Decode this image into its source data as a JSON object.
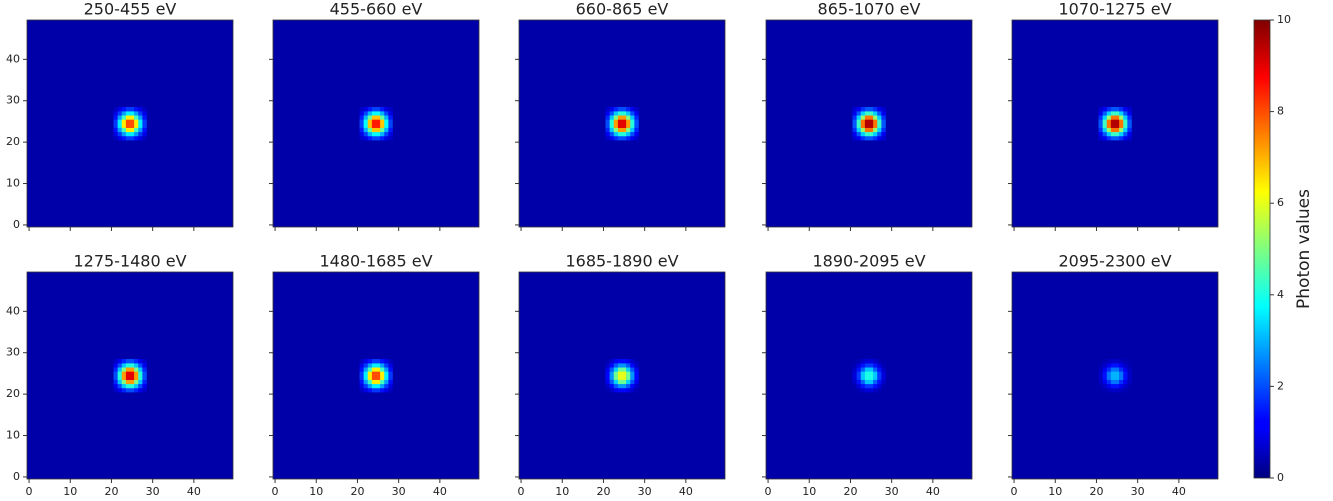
{
  "chart_data": {
    "type": "heatmap",
    "colormap": "jet",
    "x": [
      21,
      22,
      23,
      24,
      25,
      26,
      27,
      28
    ],
    "y": [
      21,
      22,
      23,
      24,
      25,
      26,
      27,
      28
    ],
    "xlim": [
      -0.5,
      49.5
    ],
    "ylim": [
      -0.5,
      49.5
    ],
    "xticks": [
      0,
      10,
      20,
      30,
      40
    ],
    "yticks": [
      0,
      10,
      20,
      30,
      40
    ],
    "colorbar": {
      "label": "Photon values",
      "lim": [
        0,
        10
      ],
      "ticks": [
        0,
        2,
        4,
        6,
        8,
        10
      ]
    },
    "panels": [
      {
        "title": "250-455 eV",
        "background": 0.4,
        "values": [
          [
            0.6,
            1.0,
            1.4,
            1.8,
            1.8,
            1.4,
            1.0,
            0.6
          ],
          [
            1.0,
            1.8,
            2.8,
            3.6,
            3.6,
            2.8,
            1.8,
            1.0
          ],
          [
            1.4,
            2.8,
            4.4,
            6.4,
            6.4,
            4.4,
            2.8,
            1.4
          ],
          [
            1.8,
            3.6,
            6.4,
            8,
            8,
            6.4,
            3.6,
            1.8
          ],
          [
            1.8,
            3.6,
            6.4,
            8,
            8,
            6.4,
            3.6,
            1.8
          ],
          [
            1.4,
            2.8,
            4.4,
            6.4,
            6.4,
            4.4,
            2.8,
            1.4
          ],
          [
            1.0,
            1.8,
            2.8,
            3.6,
            3.6,
            2.8,
            1.8,
            1.0
          ],
          [
            0.6,
            1.0,
            1.4,
            1.8,
            1.8,
            1.4,
            1.0,
            0.6
          ]
        ]
      },
      {
        "title": "455-660 eV",
        "background": 0.4,
        "values": [
          [
            0.7,
            1.0,
            1.5,
            1.9,
            1.9,
            1.5,
            1.0,
            0.7
          ],
          [
            1.0,
            1.9,
            3.0,
            3.8,
            3.8,
            3.0,
            1.9,
            1.0
          ],
          [
            1.5,
            3.0,
            4.7,
            6.8,
            6.8,
            4.7,
            3.0,
            1.5
          ],
          [
            1.9,
            3.8,
            6.8,
            8.5,
            8.5,
            6.8,
            3.8,
            1.9
          ],
          [
            1.9,
            3.8,
            6.8,
            8.5,
            8.5,
            6.8,
            3.8,
            1.9
          ],
          [
            1.5,
            3.0,
            4.7,
            6.8,
            6.8,
            4.7,
            3.0,
            1.5
          ],
          [
            1.0,
            1.9,
            3.0,
            3.8,
            3.8,
            3.0,
            1.9,
            1.0
          ],
          [
            0.7,
            1.0,
            1.5,
            1.9,
            1.9,
            1.5,
            1.0,
            0.7
          ]
        ]
      },
      {
        "title": "660-865 eV",
        "background": 0.4,
        "values": [
          [
            0.7,
            1.1,
            1.6,
            2.0,
            2.0,
            1.6,
            1.1,
            0.7
          ],
          [
            1.1,
            2.0,
            3.2,
            4.1,
            4.1,
            3.2,
            2.0,
            1.1
          ],
          [
            1.6,
            3.2,
            5.0,
            7.2,
            7.2,
            5.0,
            3.2,
            1.6
          ],
          [
            2.0,
            4.1,
            7.2,
            9,
            9,
            7.2,
            4.1,
            2.0
          ],
          [
            2.0,
            4.1,
            7.2,
            9,
            9,
            7.2,
            4.1,
            2.0
          ],
          [
            1.6,
            3.2,
            5.0,
            7.2,
            7.2,
            5.0,
            3.2,
            1.6
          ],
          [
            1.1,
            2.0,
            3.2,
            4.1,
            4.1,
            3.2,
            2.0,
            1.1
          ],
          [
            0.7,
            1.1,
            1.6,
            2.0,
            2.0,
            1.6,
            1.1,
            0.7
          ]
        ]
      },
      {
        "title": "865-1070 eV",
        "background": 0.4,
        "values": [
          [
            0.8,
            1.1,
            1.7,
            2.1,
            2.1,
            1.7,
            1.1,
            0.8
          ],
          [
            1.1,
            2.1,
            3.3,
            4.3,
            4.3,
            3.3,
            2.1,
            1.1
          ],
          [
            1.7,
            3.3,
            5.2,
            7.6,
            7.6,
            5.2,
            3.3,
            1.7
          ],
          [
            2.1,
            4.3,
            7.6,
            9.5,
            9.5,
            7.6,
            4.3,
            2.1
          ],
          [
            2.1,
            4.3,
            7.6,
            9.5,
            9.5,
            7.6,
            4.3,
            2.1
          ],
          [
            1.7,
            3.3,
            5.2,
            7.6,
            7.6,
            5.2,
            3.3,
            1.7
          ],
          [
            1.1,
            2.1,
            3.3,
            4.3,
            4.3,
            3.3,
            2.1,
            1.1
          ],
          [
            0.8,
            1.1,
            1.7,
            2.1,
            2.1,
            1.7,
            1.1,
            0.8
          ]
        ]
      },
      {
        "title": "1070-1275 eV",
        "background": 0.4,
        "values": [
          [
            0.8,
            1.1,
            1.7,
            2.1,
            2.1,
            1.7,
            1.1,
            0.8
          ],
          [
            1.1,
            2.1,
            3.3,
            4.3,
            4.3,
            3.3,
            2.1,
            1.1
          ],
          [
            1.7,
            3.3,
            5.2,
            7.6,
            7.6,
            5.2,
            3.3,
            1.7
          ],
          [
            2.1,
            4.3,
            7.6,
            9.5,
            9.5,
            7.6,
            4.3,
            2.1
          ],
          [
            2.1,
            4.3,
            7.6,
            9.5,
            9.5,
            7.6,
            4.3,
            2.1
          ],
          [
            1.7,
            3.3,
            5.2,
            7.6,
            7.6,
            5.2,
            3.3,
            1.7
          ],
          [
            1.1,
            2.1,
            3.3,
            4.3,
            4.3,
            3.3,
            2.1,
            1.1
          ],
          [
            0.8,
            1.1,
            1.7,
            2.1,
            2.1,
            1.7,
            1.1,
            0.8
          ]
        ]
      },
      {
        "title": "1275-1480 eV",
        "background": 0.4,
        "values": [
          [
            0.7,
            1.1,
            1.6,
            2.0,
            2.0,
            1.6,
            1.1,
            0.7
          ],
          [
            1.1,
            2.0,
            3.2,
            4.1,
            4.1,
            3.2,
            2.0,
            1.1
          ],
          [
            1.6,
            3.2,
            5.0,
            7.2,
            7.2,
            5.0,
            3.2,
            1.6
          ],
          [
            2.0,
            4.1,
            7.2,
            9,
            9,
            7.2,
            4.1,
            2.0
          ],
          [
            2.0,
            4.1,
            7.2,
            9,
            9,
            7.2,
            4.1,
            2.0
          ],
          [
            1.6,
            3.2,
            5.0,
            7.2,
            7.2,
            5.0,
            3.2,
            1.6
          ],
          [
            1.1,
            2.0,
            3.2,
            4.1,
            4.1,
            3.2,
            2.0,
            1.1
          ],
          [
            0.7,
            1.1,
            1.6,
            2.0,
            2.0,
            1.6,
            1.1,
            0.7
          ]
        ]
      },
      {
        "title": "1480-1685 eV",
        "background": 0.4,
        "values": [
          [
            0.6,
            1.0,
            1.4,
            1.8,
            1.8,
            1.4,
            1.0,
            0.6
          ],
          [
            1.0,
            1.8,
            2.8,
            3.6,
            3.6,
            2.8,
            1.8,
            1.0
          ],
          [
            1.4,
            2.8,
            4.4,
            6.4,
            6.4,
            4.4,
            2.8,
            1.4
          ],
          [
            1.8,
            3.6,
            6.4,
            8,
            8,
            6.4,
            3.6,
            1.8
          ],
          [
            1.8,
            3.6,
            6.4,
            8,
            8,
            6.4,
            3.6,
            1.8
          ],
          [
            1.4,
            2.8,
            4.4,
            6.4,
            6.4,
            4.4,
            2.8,
            1.4
          ],
          [
            1.0,
            1.8,
            2.8,
            3.6,
            3.6,
            2.8,
            1.8,
            1.0
          ],
          [
            0.6,
            1.0,
            1.4,
            1.8,
            1.8,
            1.4,
            1.0,
            0.6
          ]
        ]
      },
      {
        "title": "1685-1890 eV",
        "background": 0.4,
        "values": [
          [
            0.5,
            0.7,
            1.1,
            1.3,
            1.3,
            1.1,
            0.7,
            0.5
          ],
          [
            0.7,
            1.3,
            2.1,
            2.7,
            2.7,
            2.1,
            1.3,
            0.7
          ],
          [
            1.1,
            2.1,
            3.3,
            4.8,
            4.8,
            3.3,
            2.1,
            1.1
          ],
          [
            1.3,
            2.7,
            4.8,
            6,
            6,
            4.8,
            2.7,
            1.3
          ],
          [
            1.3,
            2.7,
            4.8,
            6,
            6,
            4.8,
            2.7,
            1.3
          ],
          [
            1.1,
            2.1,
            3.3,
            4.8,
            4.8,
            3.3,
            2.1,
            1.1
          ],
          [
            0.7,
            1.3,
            2.1,
            2.7,
            2.7,
            2.1,
            1.3,
            0.7
          ],
          [
            0.5,
            0.7,
            1.1,
            1.3,
            1.3,
            1.1,
            0.7,
            0.5
          ]
        ]
      },
      {
        "title": "1890-2095 eV",
        "background": 0.4,
        "values": [
          [
            0.4,
            0.5,
            0.7,
            0.9,
            0.9,
            0.7,
            0.5,
            0.4
          ],
          [
            0.5,
            0.9,
            1.4,
            1.8,
            1.8,
            1.4,
            0.9,
            0.5
          ],
          [
            0.7,
            1.4,
            2.2,
            3.2,
            3.2,
            2.2,
            1.4,
            0.7
          ],
          [
            0.9,
            1.8,
            3.2,
            4,
            4,
            3.2,
            1.8,
            0.9
          ],
          [
            0.9,
            1.8,
            3.2,
            4,
            4,
            3.2,
            1.8,
            0.9
          ],
          [
            0.7,
            1.4,
            2.2,
            3.2,
            3.2,
            2.2,
            1.4,
            0.7
          ],
          [
            0.5,
            0.9,
            1.4,
            1.8,
            1.8,
            1.4,
            0.9,
            0.5
          ],
          [
            0.4,
            0.5,
            0.7,
            0.9,
            0.9,
            0.7,
            0.5,
            0.4
          ]
        ]
      },
      {
        "title": "2095-2300 eV",
        "background": 0.4,
        "values": [
          [
            0.4,
            0.5,
            0.6,
            0.7,
            0.7,
            0.6,
            0.5,
            0.4
          ],
          [
            0.5,
            0.7,
            1.1,
            1.4,
            1.4,
            1.1,
            0.7,
            0.5
          ],
          [
            0.6,
            1.1,
            1.7,
            2.4,
            2.4,
            1.7,
            1.1,
            0.6
          ],
          [
            0.7,
            1.4,
            2.4,
            3,
            3,
            2.4,
            1.4,
            0.7
          ],
          [
            0.7,
            1.4,
            2.4,
            3,
            3,
            2.4,
            1.4,
            0.7
          ],
          [
            0.6,
            1.1,
            1.7,
            2.4,
            2.4,
            1.7,
            1.1,
            0.6
          ],
          [
            0.5,
            0.7,
            1.1,
            1.4,
            1.4,
            1.1,
            0.7,
            0.5
          ],
          [
            0.4,
            0.5,
            0.6,
            0.7,
            0.7,
            0.6,
            0.5,
            0.4
          ]
        ]
      }
    ]
  }
}
